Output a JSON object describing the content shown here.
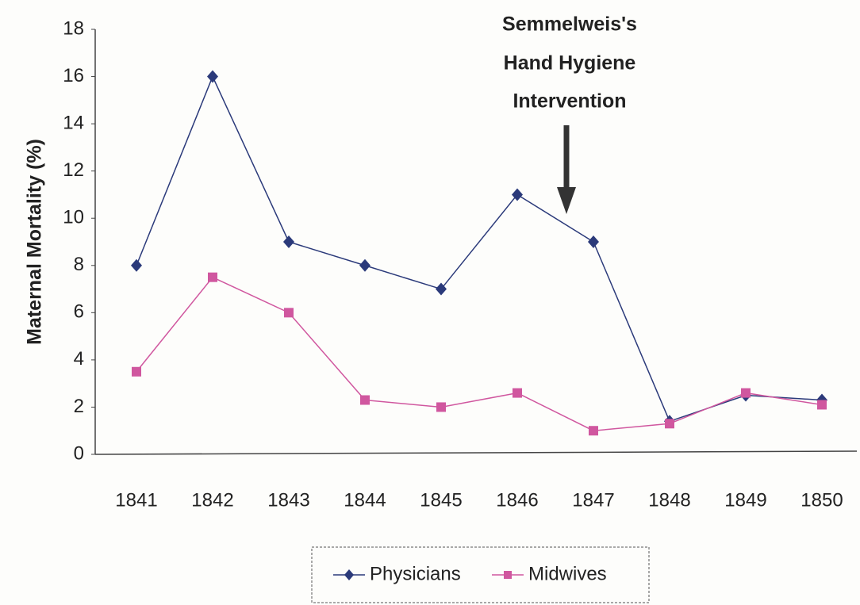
{
  "chart_data": {
    "type": "line",
    "y_label": "Maternal Mortality (%)",
    "annotation": [
      "Semmelweis's",
      "Hand Hygiene",
      "Intervention"
    ],
    "categories": [
      "1841",
      "1842",
      "1843",
      "1844",
      "1845",
      "1846",
      "1847",
      "1848",
      "1849",
      "1850"
    ],
    "series": [
      {
        "name": "Physicians",
        "color": "#2b3a7a",
        "marker": "diamond",
        "values": [
          8,
          16,
          9,
          8,
          7,
          11,
          9,
          1.4,
          2.5,
          2.3
        ]
      },
      {
        "name": "Midwives",
        "color": "#d0579f",
        "marker": "square",
        "values": [
          3.5,
          7.5,
          6,
          2.3,
          2,
          2.6,
          1,
          1.3,
          2.6,
          2.1
        ]
      }
    ],
    "ylim": [
      0,
      18
    ],
    "yticks": [
      0,
      2,
      4,
      6,
      8,
      10,
      12,
      14,
      16,
      18
    ],
    "grid": false,
    "legend": "bottom"
  }
}
